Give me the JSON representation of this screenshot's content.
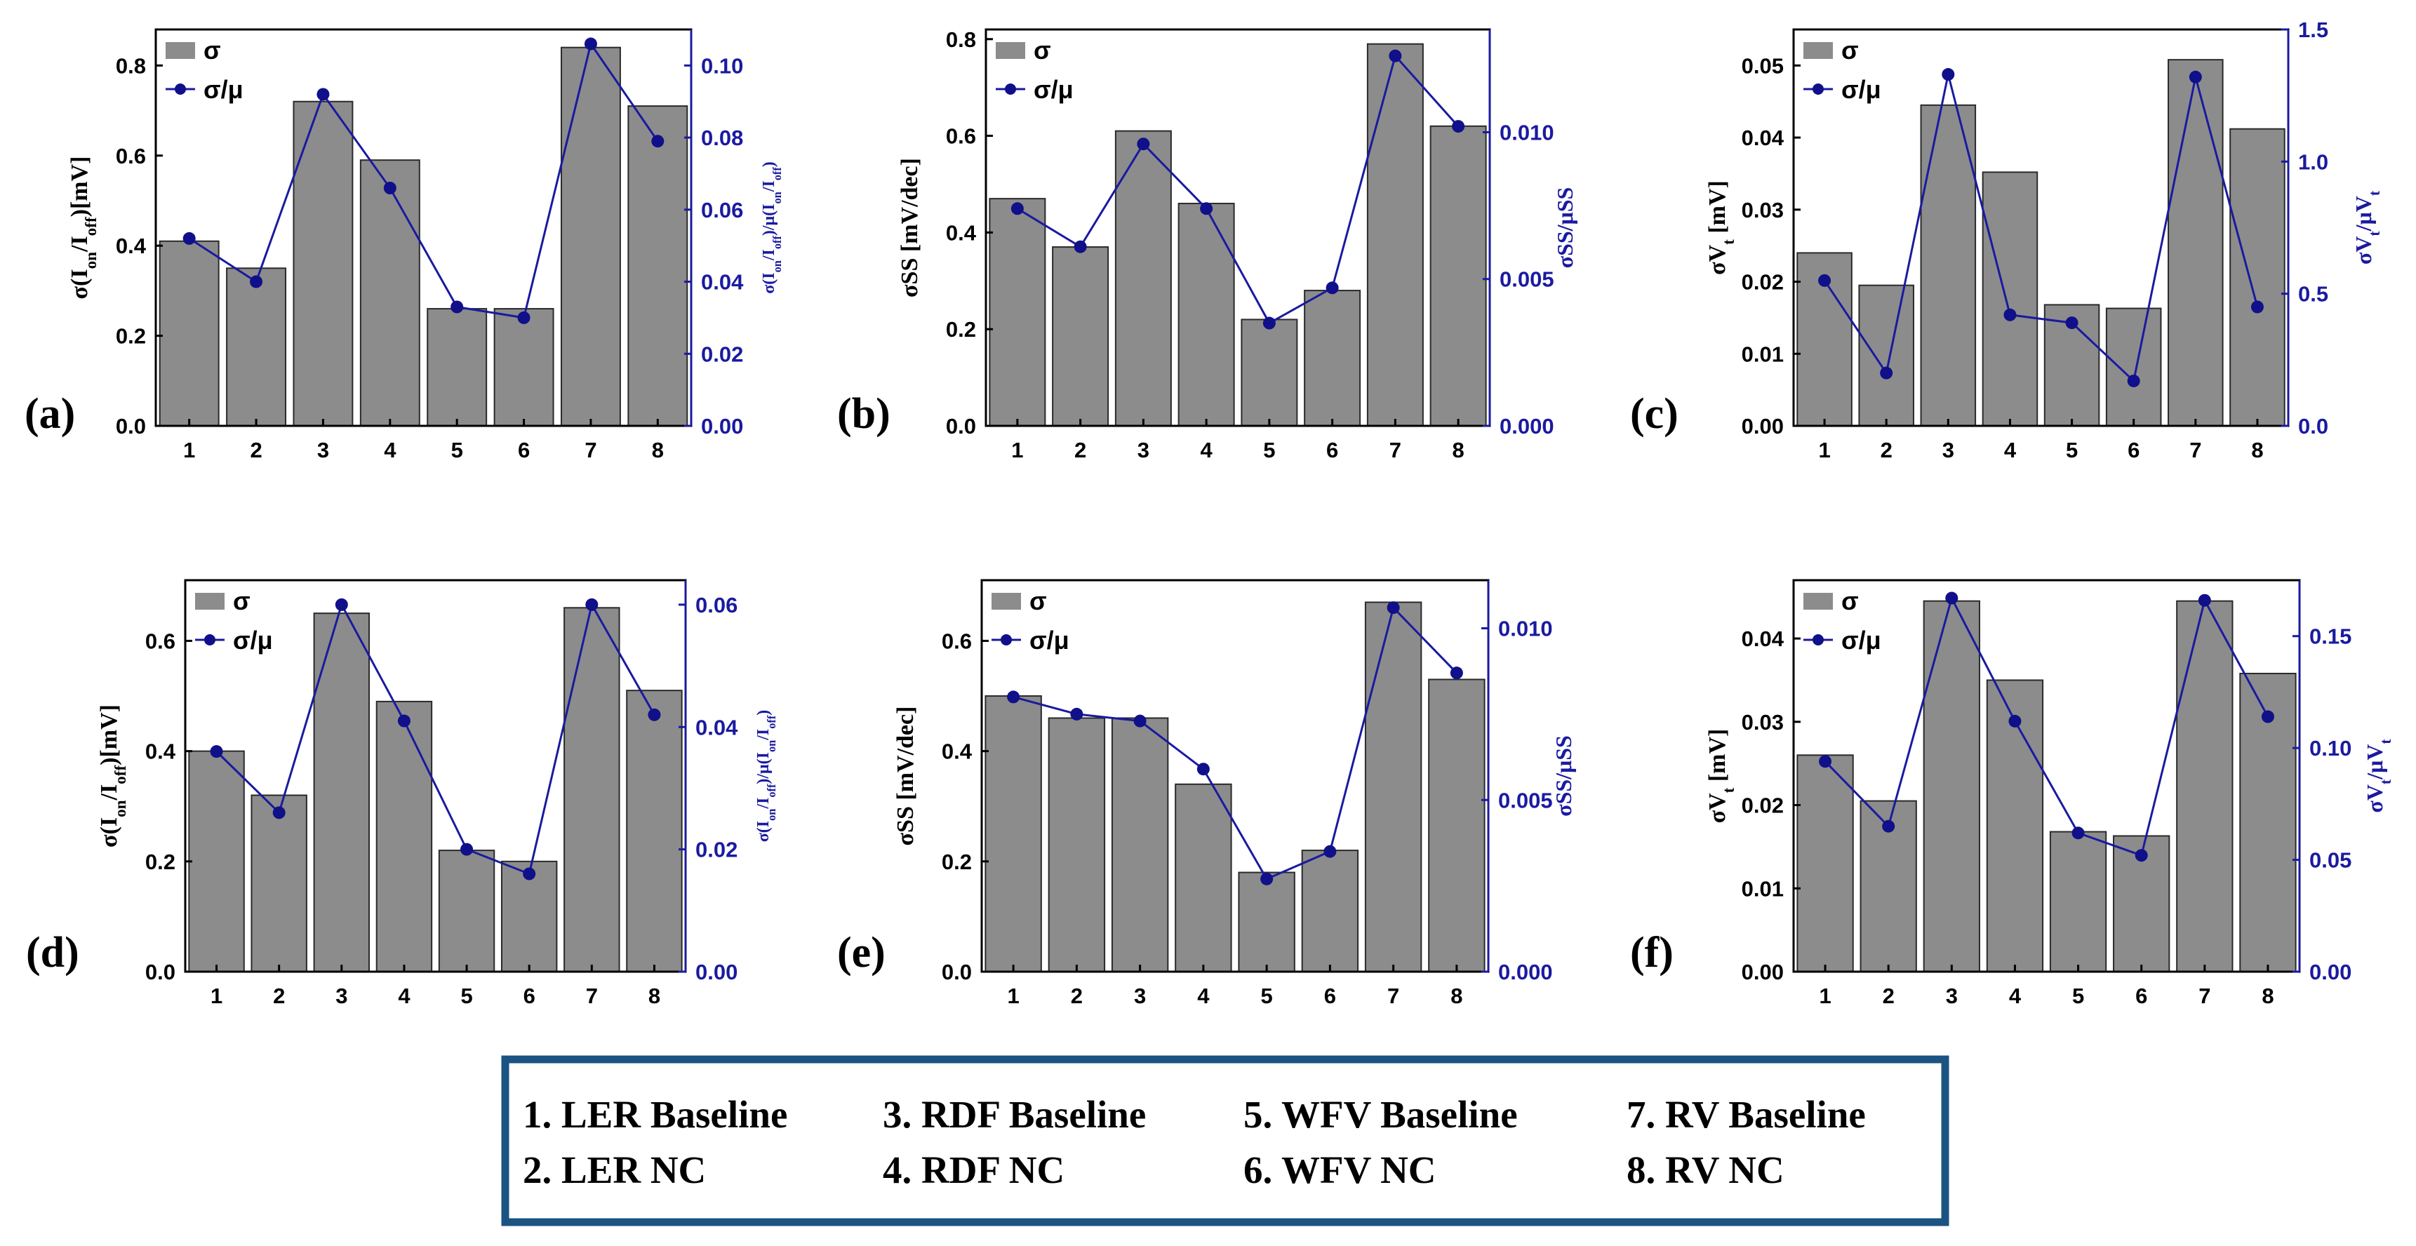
{
  "legend_labels": {
    "bar": "σ",
    "line": "σ/μ"
  },
  "colors": {
    "bar_fill": "#8c8c8c",
    "bar_edge": "#2a2a2a",
    "line": "#1a1aa0",
    "marker": "#10108a",
    "axis2": "#1a1aa0",
    "key_border": "#1b5382"
  },
  "key": {
    "items": [
      "1. LER Baseline",
      "2. LER NC",
      "3. RDF Baseline",
      "4. RDF NC",
      "5. WFV Baseline",
      "6. WFV NC",
      "7. RV Baseline",
      "8. RV NC"
    ]
  },
  "chart_data": [
    {
      "panel": "(a)",
      "type": "bar",
      "categories": [
        "1",
        "2",
        "3",
        "4",
        "5",
        "6",
        "7",
        "8"
      ],
      "series": [
        {
          "name": "σ",
          "axis": "left",
          "values": [
            0.41,
            0.35,
            0.72,
            0.59,
            0.26,
            0.26,
            0.84,
            0.71
          ]
        },
        {
          "name": "σ/μ",
          "axis": "right",
          "values": [
            0.052,
            0.04,
            0.092,
            0.066,
            0.033,
            0.03,
            0.106,
            0.079
          ]
        }
      ],
      "ylabel": "σ(Ion/Ioff)[mV]",
      "y2label": "σ(Ion/Ioff)/μ(Ion/Ioff)",
      "ylim": [
        0,
        0.88
      ],
      "y2lim": [
        0,
        0.11
      ],
      "yticks": [
        "0.0",
        "0.2",
        "0.4",
        "0.6",
        "0.8"
      ],
      "y2ticks": [
        "0.00",
        "0.02",
        "0.04",
        "0.06",
        "0.08",
        "0.10"
      ]
    },
    {
      "panel": "(b)",
      "type": "bar",
      "categories": [
        "1",
        "2",
        "3",
        "4",
        "5",
        "6",
        "7",
        "8"
      ],
      "series": [
        {
          "name": "σ",
          "axis": "left",
          "values": [
            0.47,
            0.37,
            0.61,
            0.46,
            0.22,
            0.28,
            0.79,
            0.62
          ]
        },
        {
          "name": "σ/μ",
          "axis": "right",
          "values": [
            0.0074,
            0.0061,
            0.0096,
            0.0074,
            0.0035,
            0.0047,
            0.0126,
            0.0102
          ]
        }
      ],
      "ylabel": "σSS [mV/dec]",
      "y2label": "σSS/μSS",
      "ylim": [
        0,
        0.82
      ],
      "y2lim": [
        0,
        0.0135
      ],
      "yticks": [
        "0.0",
        "0.2",
        "0.4",
        "0.6",
        "0.8"
      ],
      "y2ticks": [
        "0.000",
        "0.005",
        "0.010"
      ]
    },
    {
      "panel": "(c)",
      "type": "bar",
      "categories": [
        "1",
        "2",
        "3",
        "4",
        "5",
        "6",
        "7",
        "8"
      ],
      "series": [
        {
          "name": "σ",
          "axis": "left",
          "values": [
            0.024,
            0.0195,
            0.0445,
            0.0352,
            0.0168,
            0.0163,
            0.0508,
            0.0412
          ]
        },
        {
          "name": "σ/μ",
          "axis": "right",
          "values": [
            0.55,
            0.2,
            1.33,
            0.42,
            0.39,
            0.17,
            1.32,
            0.45
          ]
        }
      ],
      "ylabel": "σVt [mV]",
      "y2label": "σVt/μVt",
      "ylim": [
        0,
        0.055
      ],
      "y2lim": [
        0,
        1.5
      ],
      "yticks": [
        "0.00",
        "0.01",
        "0.02",
        "0.03",
        "0.04",
        "0.05"
      ],
      "y2ticks": [
        "0.0",
        "0.5",
        "1.0",
        "1.5"
      ]
    },
    {
      "panel": "(d)",
      "type": "bar",
      "categories": [
        "1",
        "2",
        "3",
        "4",
        "5",
        "6",
        "7",
        "8"
      ],
      "series": [
        {
          "name": "σ",
          "axis": "left",
          "values": [
            0.4,
            0.32,
            0.65,
            0.49,
            0.22,
            0.2,
            0.66,
            0.51
          ]
        },
        {
          "name": "σ/μ",
          "axis": "right",
          "values": [
            0.036,
            0.026,
            0.06,
            0.041,
            0.02,
            0.016,
            0.06,
            0.042
          ]
        }
      ],
      "ylabel": "σ(Ion/Ioff)[mV]",
      "y2label": "σ(Ion/Ioff)/μ(Ion/Ioff)",
      "ylim": [
        0,
        0.71
      ],
      "y2lim": [
        0,
        0.064
      ],
      "yticks": [
        "0.0",
        "0.2",
        "0.4",
        "0.6"
      ],
      "y2ticks": [
        "0.00",
        "0.02",
        "0.04",
        "0.06"
      ]
    },
    {
      "panel": "(e)",
      "type": "bar",
      "categories": [
        "1",
        "2",
        "3",
        "4",
        "5",
        "6",
        "7",
        "8"
      ],
      "series": [
        {
          "name": "σ",
          "axis": "left",
          "values": [
            0.5,
            0.46,
            0.46,
            0.34,
            0.18,
            0.22,
            0.67,
            0.53
          ]
        },
        {
          "name": "σ/μ",
          "axis": "right",
          "values": [
            0.008,
            0.0075,
            0.0073,
            0.0059,
            0.0027,
            0.0035,
            0.0106,
            0.0087
          ]
        }
      ],
      "ylabel": "σSS [mV/dec]",
      "y2label": "σSS/μSS",
      "ylim": [
        0,
        0.71
      ],
      "y2lim": [
        0,
        0.0114
      ],
      "yticks": [
        "0.0",
        "0.2",
        "0.4",
        "0.6"
      ],
      "y2ticks": [
        "0.000",
        "0.005",
        "0.010"
      ]
    },
    {
      "panel": "(f)",
      "type": "bar",
      "categories": [
        "1",
        "2",
        "3",
        "4",
        "5",
        "6",
        "7",
        "8"
      ],
      "series": [
        {
          "name": "σ",
          "axis": "left",
          "values": [
            0.026,
            0.0205,
            0.0445,
            0.035,
            0.0168,
            0.0163,
            0.0445,
            0.0358
          ]
        },
        {
          "name": "σ/μ",
          "axis": "right",
          "values": [
            0.094,
            0.065,
            0.167,
            0.112,
            0.062,
            0.052,
            0.166,
            0.114
          ]
        }
      ],
      "ylabel": "σVt [mV]",
      "y2label": "σVt/μVt",
      "ylim": [
        0,
        0.047
      ],
      "y2lim": [
        0,
        0.175
      ],
      "yticks": [
        "0.00",
        "0.01",
        "0.02",
        "0.03",
        "0.04"
      ],
      "y2ticks": [
        "0.00",
        "0.05",
        "0.10",
        "0.15"
      ]
    }
  ]
}
